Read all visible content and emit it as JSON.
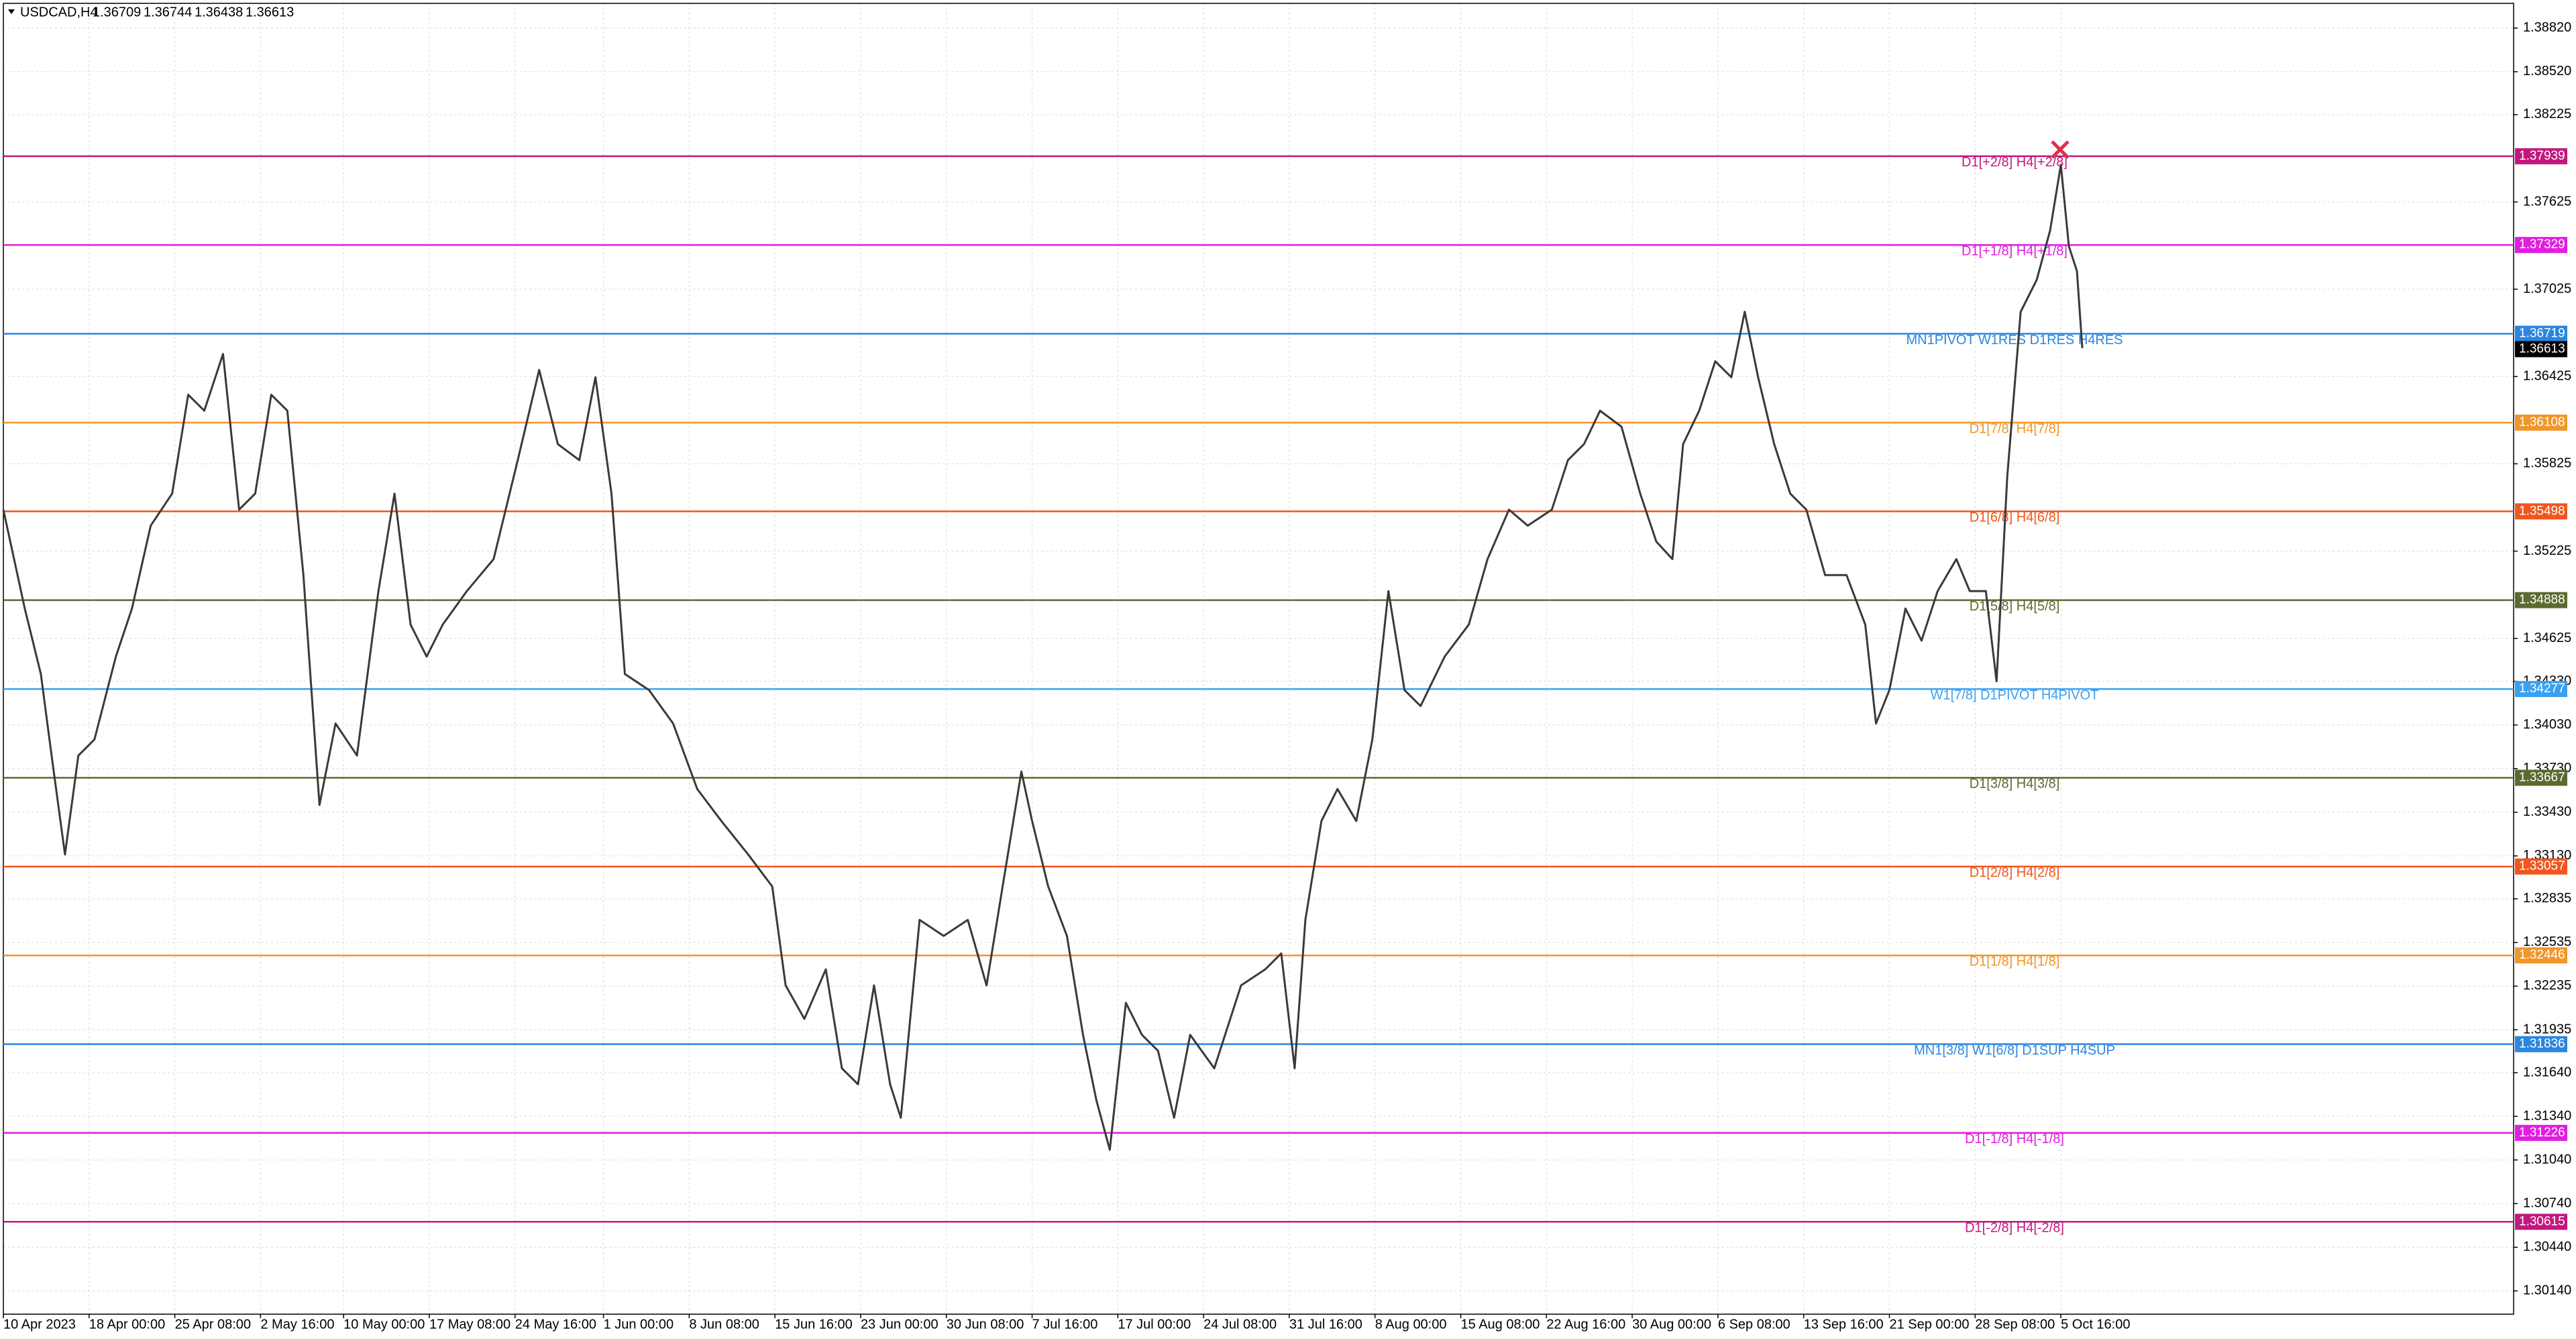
{
  "chart_data": {
    "type": "line",
    "title": "USDCAD,H4",
    "ohlc": [
      1.36709,
      1.36744,
      1.36438,
      1.36613
    ],
    "color": "#3a3a3a",
    "grid": true,
    "xlim": [
      0,
      937
    ],
    "ylim": [
      1.2998,
      1.3899
    ],
    "xticks": [
      {
        "value": 0,
        "label": "10 Apr 2023"
      },
      {
        "value": 32,
        "label": "18 Apr 00:00"
      },
      {
        "value": 64,
        "label": "25 Apr 08:00"
      },
      {
        "value": 96,
        "label": "2 May 16:00"
      },
      {
        "value": 127,
        "label": "10 May 00:00"
      },
      {
        "value": 159,
        "label": "17 May 08:00"
      },
      {
        "value": 191,
        "label": "24 May 16:00"
      },
      {
        "value": 224,
        "label": "1 Jun 00:00"
      },
      {
        "value": 256,
        "label": "8 Jun 08:00"
      },
      {
        "value": 288,
        "label": "15 Jun 16:00"
      },
      {
        "value": 320,
        "label": "23 Jun 00:00"
      },
      {
        "value": 352,
        "label": "30 Jun 08:00"
      },
      {
        "value": 384,
        "label": "7 Jul 16:00"
      },
      {
        "value": 416,
        "label": "17 Jul 00:00"
      },
      {
        "value": 448,
        "label": "24 Jul 08:00"
      },
      {
        "value": 480,
        "label": "31 Jul 16:00"
      },
      {
        "value": 512,
        "label": "8 Aug 00:00"
      },
      {
        "value": 544,
        "label": "15 Aug 08:00"
      },
      {
        "value": 576,
        "label": "22 Aug 16:00"
      },
      {
        "value": 608,
        "label": "30 Aug 00:00"
      },
      {
        "value": 640,
        "label": "6 Sep 08:00"
      },
      {
        "value": 672,
        "label": "13 Sep 16:00"
      },
      {
        "value": 704,
        "label": "21 Sep 00:00"
      },
      {
        "value": 736,
        "label": "28 Sep 08:00"
      },
      {
        "value": 768,
        "label": "5 Oct 16:00"
      }
    ],
    "yticks": [
      {
        "value": 1.3882,
        "label": "1.38820"
      },
      {
        "value": 1.3852,
        "label": "1.38520"
      },
      1.38225,
      1.37625,
      1.37025,
      1.36425,
      1.35825,
      1.35225,
      1.34625,
      {
        "value": 1.3433,
        "label": "1.34330"
      },
      {
        "value": 1.3403,
        "label": "1.34030"
      },
      {
        "value": 1.3373,
        "label": "1.33730"
      },
      {
        "value": 1.3343,
        "label": "1.33430"
      },
      {
        "value": 1.3313,
        "label": "1.33130"
      },
      1.32835,
      1.32535,
      1.32235,
      1.31935,
      {
        "value": 1.3164,
        "label": "1.31640"
      },
      {
        "value": 1.3134,
        "label": "1.31340"
      },
      {
        "value": 1.3104,
        "label": "1.31040"
      },
      {
        "value": 1.3074,
        "label": "1.30740"
      },
      {
        "value": 1.3044,
        "label": "1.30440"
      },
      {
        "value": 1.3014,
        "label": "1.30140"
      }
    ],
    "levels": [
      {
        "label": "D1[+2/8] H4[+2/8]",
        "value": 1.37939,
        "color": "#c2187e"
      },
      {
        "label": "D1[+1/8] H4[+1/8]",
        "value": 1.37329,
        "color": "#e01ee0"
      },
      {
        "label": "MN1PIVOT W1RES D1RES H4RES",
        "value": 1.36719,
        "color": "#2a86e0"
      },
      {
        "label": "D1[7/8] H4[7/8]",
        "value": 1.36108,
        "color": "#f0962a"
      },
      {
        "label": "D1[6/8] H4[6/8]",
        "value": 1.35498,
        "color": "#f0561e"
      },
      {
        "label": "D1[5/8] H4[5/8]",
        "value": 1.34888,
        "color": "#5b6b30"
      },
      {
        "label": "W1[7/8] D1PIVOT H4PIVOT",
        "value": 1.34277,
        "color": "#3aa0f0"
      },
      {
        "label": "D1[3/8] H4[3/8]",
        "value": 1.33667,
        "color": "#5b6b30"
      },
      {
        "label": "D1[2/8] H4[2/8]",
        "value": 1.33057,
        "color": "#f0561e"
      },
      {
        "label": "D1[1/8] H4[1/8]",
        "value": 1.32446,
        "color": "#f0962a"
      },
      {
        "label": "MN1[3/8] W1[6/8] D1SUP H4SUP",
        "value": 1.31836,
        "color": "#2a86e0"
      },
      {
        "label": "D1[-1/8] H4[-1/8]",
        "value": 1.31226,
        "color": "#e01ee0"
      },
      {
        "label": "D1[-2/8] H4[-2/8]",
        "value": 1.30615,
        "color": "#c2187e"
      }
    ],
    "x": [
      0,
      8,
      14,
      18,
      23,
      28,
      34,
      42,
      48,
      55,
      63,
      69,
      75,
      82,
      88,
      94,
      100,
      106,
      112,
      118,
      124,
      132,
      140,
      146,
      152,
      158,
      164,
      173,
      183,
      192,
      200,
      207,
      215,
      221,
      227,
      232,
      241,
      250,
      259,
      268,
      278,
      287,
      292,
      299,
      307,
      313,
      319,
      325,
      331,
      335,
      342,
      351,
      360,
      367,
      373,
      380,
      384,
      390,
      397,
      403,
      408,
      413,
      419,
      425,
      431,
      437,
      443,
      452,
      462,
      471,
      477,
      482,
      486,
      492,
      498,
      505,
      511,
      517,
      523,
      529,
      538,
      547,
      554,
      562,
      569,
      578,
      584,
      590,
      596,
      604,
      611,
      617,
      623,
      627,
      633,
      639,
      645,
      650,
      655,
      661,
      667,
      673,
      680,
      688,
      695,
      699,
      704,
      710,
      716,
      722,
      729,
      734,
      740,
      744,
      748,
      753,
      759,
      764,
      768,
      771,
      774,
      776
    ],
    "values": [
      1.3551,
      1.3483,
      1.3438,
      1.3382,
      1.3314,
      1.3382,
      1.3393,
      1.345,
      1.3483,
      1.354,
      1.3562,
      1.363,
      1.3619,
      1.3658,
      1.3551,
      1.3562,
      1.363,
      1.3619,
      1.3506,
      1.3348,
      1.3404,
      1.3382,
      1.3495,
      1.3562,
      1.3472,
      1.345,
      1.3472,
      1.3495,
      1.3517,
      1.3585,
      1.3647,
      1.3596,
      1.3585,
      1.3642,
      1.3562,
      1.3438,
      1.3427,
      1.3404,
      1.3359,
      1.3337,
      1.3314,
      1.3292,
      1.3224,
      1.3201,
      1.3235,
      1.3167,
      1.3156,
      1.3224,
      1.3156,
      1.3133,
      1.3269,
      1.3258,
      1.3269,
      1.3224,
      1.3292,
      1.3371,
      1.3337,
      1.3292,
      1.3258,
      1.319,
      1.3145,
      1.3111,
      1.3212,
      1.319,
      1.3179,
      1.3133,
      1.319,
      1.3167,
      1.3224,
      1.3235,
      1.3246,
      1.3167,
      1.3269,
      1.3337,
      1.3359,
      1.3337,
      1.3393,
      1.3495,
      1.3427,
      1.3416,
      1.345,
      1.3472,
      1.3517,
      1.3551,
      1.354,
      1.3551,
      1.3585,
      1.3596,
      1.3619,
      1.3608,
      1.3562,
      1.3529,
      1.3517,
      1.3596,
      1.3619,
      1.3653,
      1.3642,
      1.3687,
      1.3642,
      1.3596,
      1.3562,
      1.3551,
      1.3506,
      1.3506,
      1.3472,
      1.3404,
      1.3427,
      1.3483,
      1.3461,
      1.3495,
      1.3517,
      1.3495,
      1.3495,
      1.3433,
      1.3574,
      1.3687,
      1.3709,
      1.3743,
      1.3788,
      1.3732,
      1.3715,
      1.3662
    ]
  }
}
